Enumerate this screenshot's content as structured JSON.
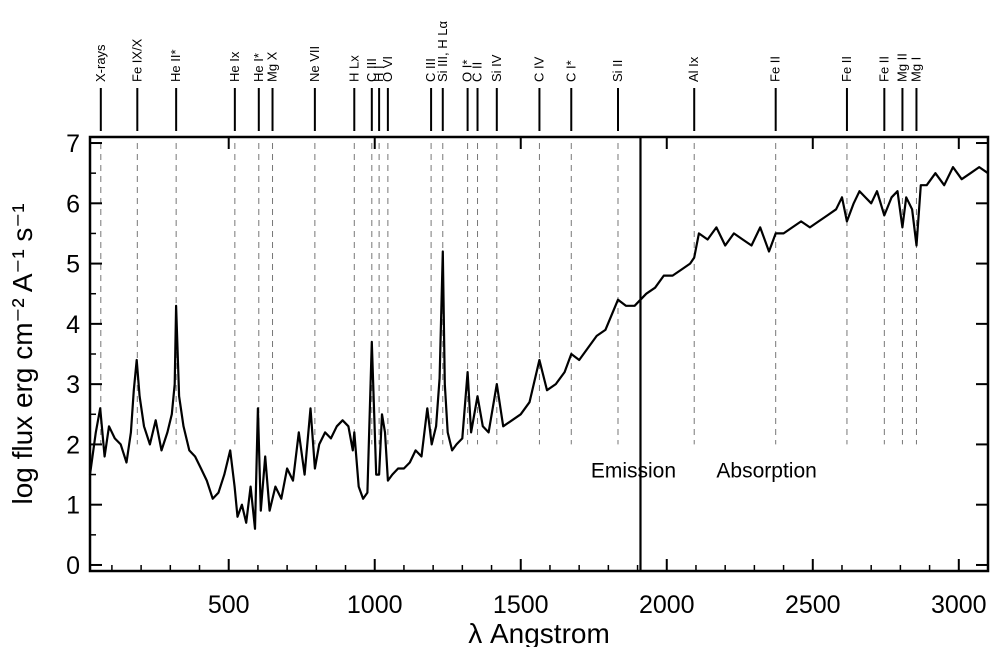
{
  "chart_data": {
    "type": "line",
    "xlabel": "λ Angstrom",
    "ylabel": "log flux erg cm⁻² A⁻¹ s⁻¹",
    "xlim": [
      25,
      3100
    ],
    "ylim": [
      -0.1,
      7.1
    ],
    "xticks": [
      500,
      1000,
      1500,
      2000,
      2500,
      3000
    ],
    "yticks": [
      0,
      1,
      2,
      3,
      4,
      5,
      6,
      7
    ],
    "divider_x": 1910,
    "regions": [
      {
        "label": "Emission",
        "x": 1740,
        "y": 1.45
      },
      {
        "label": "Absorption",
        "x": 2170,
        "y": 1.45
      }
    ],
    "line_markers": [
      {
        "label": "X-rays",
        "x": 62
      },
      {
        "label": "Fe IX/X",
        "x": 187
      },
      {
        "label": "He II*",
        "x": 320
      },
      {
        "label": "He Ix",
        "x": 521
      },
      {
        "label": "He I*",
        "x": 603
      },
      {
        "label": "Mg X",
        "x": 650
      },
      {
        "label": "Ne VII",
        "x": 795
      },
      {
        "label": "H Lx",
        "x": 930
      },
      {
        "label": "C III",
        "x": 990
      },
      {
        "label": "H I",
        "x": 1015
      },
      {
        "label": "O VI",
        "x": 1045
      },
      {
        "label": "C III",
        "x": 1193
      },
      {
        "label": "Si III, H Lα",
        "x": 1233
      },
      {
        "label": "O I*",
        "x": 1318
      },
      {
        "label": "C II",
        "x": 1352
      },
      {
        "label": "Si IV",
        "x": 1418
      },
      {
        "label": "C IV",
        "x": 1564
      },
      {
        "label": "C I*",
        "x": 1673
      },
      {
        "label": "Si II",
        "x": 1833
      },
      {
        "label": "Al Ix",
        "x": 2094
      },
      {
        "label": "Fe II",
        "x": 2373
      },
      {
        "label": "Fe II",
        "x": 2617
      },
      {
        "label": "Fe II",
        "x": 2745
      },
      {
        "label": "Mg II",
        "x": 2807
      },
      {
        "label": "Mg I",
        "x": 2855
      }
    ],
    "series": [
      {
        "color": "#000000",
        "x": [
          25,
          45,
          60,
          75,
          90,
          110,
          130,
          150,
          165,
          175,
          185,
          195,
          210,
          230,
          250,
          270,
          290,
          305,
          315,
          320,
          330,
          345,
          365,
          385,
          405,
          425,
          445,
          465,
          485,
          505,
          520,
          530,
          545,
          560,
          575,
          590,
          600,
          610,
          625,
          640,
          660,
          680,
          700,
          720,
          740,
          760,
          780,
          795,
          810,
          830,
          850,
          870,
          890,
          910,
          925,
          930,
          945,
          960,
          975,
          990,
          1005,
          1015,
          1025,
          1035,
          1045,
          1060,
          1080,
          1100,
          1120,
          1140,
          1160,
          1180,
          1195,
          1210,
          1222,
          1233,
          1240,
          1250,
          1265,
          1280,
          1300,
          1318,
          1330,
          1352,
          1370,
          1390,
          1418,
          1440,
          1470,
          1500,
          1530,
          1564,
          1590,
          1620,
          1650,
          1673,
          1700,
          1730,
          1760,
          1790,
          1833,
          1860,
          1890,
          1910,
          1930,
          1960,
          1990,
          2020,
          2050,
          2080,
          2094,
          2110,
          2140,
          2170,
          2200,
          2230,
          2260,
          2290,
          2320,
          2350,
          2373,
          2400,
          2430,
          2460,
          2490,
          2520,
          2550,
          2580,
          2600,
          2617,
          2640,
          2660,
          2680,
          2700,
          2720,
          2745,
          2770,
          2790,
          2807,
          2820,
          2840,
          2855,
          2870,
          2890,
          2920,
          2950,
          2980,
          3010,
          3040,
          3070,
          3100
        ],
        "y": [
          1.5,
          2.2,
          2.6,
          1.8,
          2.3,
          2.1,
          2.0,
          1.7,
          2.2,
          2.9,
          3.4,
          2.8,
          2.3,
          2.0,
          2.4,
          1.9,
          2.2,
          2.5,
          3.0,
          4.3,
          2.8,
          2.3,
          1.9,
          1.8,
          1.6,
          1.4,
          1.1,
          1.2,
          1.5,
          1.9,
          1.3,
          0.8,
          1.0,
          0.7,
          1.3,
          0.6,
          2.6,
          0.9,
          1.8,
          0.9,
          1.3,
          1.1,
          1.6,
          1.4,
          2.2,
          1.5,
          2.6,
          1.6,
          2.0,
          2.2,
          2.1,
          2.3,
          2.4,
          2.3,
          1.9,
          2.2,
          1.3,
          1.1,
          1.2,
          3.7,
          1.5,
          1.5,
          2.5,
          2.2,
          1.4,
          1.5,
          1.6,
          1.6,
          1.7,
          1.9,
          1.8,
          2.6,
          2.0,
          2.3,
          3.1,
          5.2,
          3.0,
          2.2,
          1.9,
          2.0,
          2.1,
          3.2,
          2.2,
          2.8,
          2.3,
          2.2,
          3.0,
          2.3,
          2.4,
          2.5,
          2.7,
          3.4,
          2.9,
          3.0,
          3.2,
          3.5,
          3.4,
          3.6,
          3.8,
          3.9,
          4.4,
          4.3,
          4.3,
          4.4,
          4.5,
          4.6,
          4.8,
          4.8,
          4.9,
          5.0,
          5.1,
          5.5,
          5.4,
          5.6,
          5.3,
          5.5,
          5.4,
          5.3,
          5.6,
          5.2,
          5.5,
          5.5,
          5.6,
          5.7,
          5.6,
          5.7,
          5.8,
          5.9,
          6.1,
          5.7,
          6.0,
          6.2,
          6.1,
          6.0,
          6.2,
          5.8,
          6.1,
          6.2,
          5.6,
          6.1,
          5.9,
          5.3,
          6.3,
          6.3,
          6.5,
          6.3,
          6.6,
          6.4,
          6.5,
          6.6,
          6.5
        ]
      }
    ]
  }
}
